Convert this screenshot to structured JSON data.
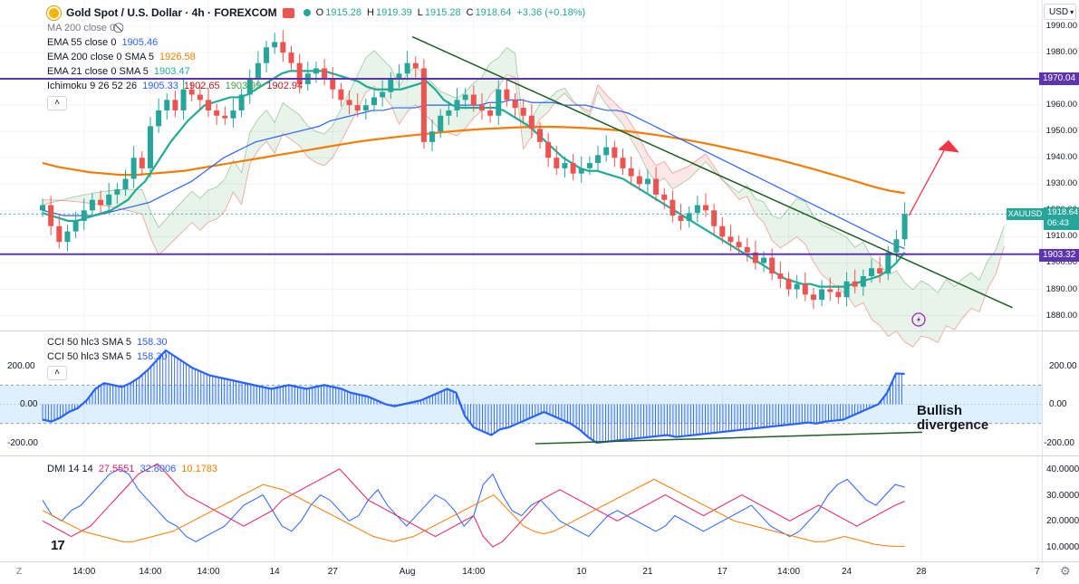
{
  "header": {
    "symbol_title": "Gold Spot / U.S. Dollar · 4h · FOREXCOM",
    "ohlc": [
      {
        "k": "O",
        "v": "1915.28"
      },
      {
        "k": "H",
        "v": "1919.39"
      },
      {
        "k": "L",
        "v": "1915.28"
      },
      {
        "k": "C",
        "v": "1918.64"
      }
    ],
    "change": "+3.36 (+0.18%)",
    "currency": "USD"
  },
  "legend": [
    {
      "label": "MA 200 close 0",
      "value": "",
      "color": "#787b86"
    },
    {
      "label": "EMA 55 close 0",
      "value": "1905.46",
      "color": "#2962ff"
    },
    {
      "label": "EMA 200 close 0 SMA 5",
      "value": "1926.58",
      "color": "#f57c00"
    },
    {
      "label": "EMA 21 close 0 SMA 5",
      "value": "1903.47",
      "color": "#22ab94"
    },
    {
      "label": "Ichimoku 9 26 52 26",
      "values": [
        "1905.33",
        "1902.65",
        "1903.99",
        "1902.94"
      ],
      "colors": [
        "#2962ff",
        "#b71c1c",
        "#43a047",
        "#b71c1c"
      ]
    }
  ],
  "price_axis": {
    "ticks": [
      "1990.00",
      "1980.00",
      "1970.00",
      "1960.00",
      "1950.00",
      "1940.00",
      "1930.00",
      "1920.00",
      "1910.00",
      "1900.00",
      "1890.00",
      "1880.00"
    ],
    "tags": [
      {
        "text": "1970.04",
        "color": "#5e35b1"
      },
      {
        "text": "XAUUSD",
        "color": "#26a69a"
      },
      {
        "text": "1918.64",
        "color": "#26a69a"
      },
      {
        "text": "06:43",
        "color": "#26a69a"
      },
      {
        "text": "1903.32",
        "color": "#5e35b1"
      }
    ]
  },
  "cci_panel": {
    "legend": [
      {
        "label": "CCI 50 hlc3 SMA 5",
        "value": "158.30"
      },
      {
        "label": "CCI 50 hlc3 SMA 5",
        "value": "158.30"
      }
    ],
    "ticks": [
      "200.00",
      "0.00",
      "-200.00"
    ],
    "annotation_line1": "Bullish",
    "annotation_line2": "divergence"
  },
  "dmi_panel": {
    "label": "DMI 14 14",
    "values": [
      {
        "v": "27.5551",
        "color": "#e91e63"
      },
      {
        "v": "32.8006",
        "color": "#2962ff"
      },
      {
        "v": "10.1783",
        "color": "#f57c00"
      }
    ],
    "ticks": [
      "40.0000",
      "30.0000",
      "20.0000",
      "10.0000"
    ]
  },
  "time_axis": [
    "10",
    "14:00",
    "17",
    "14:00",
    "24",
    "27",
    "Aug",
    "7",
    "14:00",
    "14",
    "14:00",
    "21",
    "14:00",
    "28"
  ],
  "corner_left": "Z",
  "corner_right": "⚙",
  "logo": "17",
  "chart_data": [
    {
      "type": "candlestick",
      "title": "Gold Spot / U.S. Dollar · 4h · FOREXCOM",
      "ylim": [
        1875,
        1995
      ],
      "x_label_positions": {
        "10": 5,
        "14:00a": 13,
        "17": 20,
        "14:00b": 28,
        "24": 35,
        "27": 44,
        "Aug": 52,
        "7": 65,
        "14:00c": 73,
        "14": 82,
        "14:00d": 90,
        "21": 97,
        "14:00e": 106,
        "28": 120
      },
      "close": [
        1922,
        1914,
        1908,
        1912,
        1916,
        1920,
        1924,
        1922,
        1926,
        1928,
        1932,
        1940,
        1936,
        1952,
        1958,
        1962,
        1958,
        1966,
        1964,
        1962,
        1958,
        1956,
        1955,
        1958,
        1964,
        1970,
        1976,
        1982,
        1984,
        1980,
        1976,
        1968,
        1972,
        1974,
        1970,
        1966,
        1962,
        1960,
        1958,
        1960,
        1963,
        1965,
        1970,
        1972,
        1976,
        1974,
        1946,
        1950,
        1956,
        1958,
        1962,
        1964,
        1960,
        1958,
        1956,
        1966,
        1962,
        1959,
        1956,
        1951,
        1946,
        1940,
        1936,
        1938,
        1934,
        1936,
        1938,
        1941,
        1944,
        1940,
        1936,
        1933,
        1930,
        1932,
        1926,
        1924,
        1918,
        1916,
        1919,
        1922,
        1920,
        1914,
        1910,
        1908,
        1906,
        1904,
        1900,
        1902,
        1896,
        1894,
        1890,
        1892,
        1888,
        1886,
        1890,
        1889,
        1887,
        1893,
        1891,
        1895,
        1898,
        1896,
        1904,
        1909,
        1918.64
      ],
      "ema21": [
        1919,
        1918,
        1917,
        1916,
        1916,
        1917,
        1918,
        1919,
        1920,
        1922,
        1924,
        1928,
        1931,
        1936,
        1941,
        1946,
        1950,
        1954,
        1957,
        1960,
        1961,
        1962,
        1963,
        1963,
        1964,
        1966,
        1968,
        1970,
        1972,
        1973,
        1973,
        1973,
        1973,
        1973,
        1972,
        1971,
        1970,
        1969,
        1967,
        1966,
        1966,
        1966,
        1966,
        1967,
        1968,
        1969,
        1966,
        1962,
        1960,
        1959,
        1959,
        1959,
        1959,
        1959,
        1958,
        1956,
        1954,
        1952,
        1949,
        1946,
        1943,
        1940,
        1938,
        1936,
        1935,
        1935,
        1934,
        1933,
        1932,
        1930,
        1928,
        1926,
        1924,
        1922,
        1920,
        1918,
        1916,
        1914,
        1912,
        1910,
        1908,
        1906,
        1904,
        1902,
        1900,
        1898,
        1896,
        1894,
        1893,
        1892,
        1892,
        1891,
        1891,
        1891,
        1891,
        1892,
        1893,
        1894,
        1895,
        1897,
        1900,
        1904
      ],
      "ema55": [
        1920,
        1919,
        1918,
        1918,
        1918,
        1918,
        1919,
        1920,
        1921,
        1922,
        1923,
        1925,
        1927,
        1929,
        1931,
        1934,
        1937,
        1940,
        1942,
        1944,
        1946,
        1947,
        1948,
        1949,
        1950,
        1951,
        1952,
        1954,
        1955,
        1956,
        1957,
        1958,
        1958,
        1959,
        1959,
        1959,
        1960,
        1960,
        1960,
        1960,
        1960,
        1960,
        1961,
        1961,
        1962,
        1962,
        1961,
        1961,
        1961,
        1960,
        1960,
        1960,
        1959,
        1958,
        1958,
        1957,
        1955,
        1953,
        1951,
        1949,
        1947,
        1945,
        1943,
        1941,
        1939,
        1937,
        1935,
        1933,
        1931,
        1929,
        1927,
        1925,
        1923,
        1921,
        1919,
        1917,
        1915,
        1913,
        1911,
        1909,
        1907,
        1905.46
      ],
      "ema200": [
        1938,
        1936.5,
        1935.5,
        1934.5,
        1934,
        1933.5,
        1933.5,
        1934,
        1934.5,
        1935,
        1936,
        1937,
        1938,
        1939,
        1940,
        1941,
        1942,
        1943,
        1944,
        1945,
        1946,
        1946.8,
        1947.5,
        1948.2,
        1948.8,
        1949.4,
        1950,
        1950.5,
        1950.9,
        1951.2,
        1951.5,
        1951.7,
        1951.8,
        1951.7,
        1951.5,
        1951.2,
        1950.8,
        1950.3,
        1949.6,
        1948.8,
        1947.9,
        1946.9,
        1945.8,
        1944.6,
        1943.3,
        1942,
        1940.6,
        1939.2,
        1937.6,
        1936,
        1934.3,
        1932.6,
        1930.8,
        1929,
        1927.5,
        1926.58
      ],
      "cci": [
        -80,
        -90,
        -70,
        -40,
        -20,
        20,
        80,
        110,
        100,
        90,
        110,
        140,
        180,
        230,
        280,
        250,
        220,
        190,
        170,
        150,
        140,
        130,
        120,
        110,
        100,
        90,
        80,
        90,
        100,
        90,
        80,
        90,
        100,
        90,
        80,
        60,
        50,
        40,
        20,
        0,
        -10,
        0,
        10,
        20,
        40,
        60,
        80,
        60,
        -60,
        -120,
        -140,
        -160,
        -130,
        -120,
        -100,
        -80,
        -60,
        -40,
        -60,
        -80,
        -100,
        -130,
        -170,
        -200,
        -195,
        -190,
        -185,
        -180,
        -175,
        -170,
        -165,
        -160,
        -170,
        -165,
        -160,
        -155,
        -150,
        -145,
        -140,
        -135,
        -130,
        -125,
        -120,
        -115,
        -110,
        -105,
        -100,
        -95,
        -100,
        -90,
        -85,
        -80,
        -60,
        -40,
        -20,
        0,
        60,
        160,
        158.3
      ],
      "dmi_plus": [
        28,
        22,
        20,
        24,
        26,
        30,
        34,
        38,
        40,
        38,
        32,
        28,
        24,
        20,
        18,
        14,
        12,
        14,
        16,
        18,
        22,
        26,
        28,
        30,
        24,
        18,
        16,
        20,
        26,
        30,
        28,
        24,
        20,
        22,
        28,
        32,
        26,
        22,
        18,
        22,
        26,
        30,
        28,
        24,
        18,
        22,
        34,
        38,
        30,
        24,
        22,
        26,
        28,
        24,
        20,
        18,
        16,
        14,
        18,
        22,
        24,
        22,
        20,
        18,
        16,
        18,
        22,
        20,
        18,
        16,
        18,
        20,
        22,
        24,
        26,
        22,
        18,
        16,
        14,
        16,
        20,
        24,
        30,
        34,
        36,
        32,
        28,
        26,
        30,
        34,
        33
      ],
      "dmi_minus": [
        20,
        18,
        16,
        14,
        16,
        18,
        22,
        26,
        30,
        34,
        38,
        40,
        42,
        38,
        34,
        30,
        28,
        26,
        24,
        22,
        20,
        18,
        20,
        22,
        24,
        28,
        30,
        32,
        34,
        36,
        38,
        40,
        36,
        32,
        28,
        26,
        24,
        22,
        20,
        18,
        16,
        14,
        16,
        18,
        20,
        22,
        14,
        10,
        12,
        16,
        20,
        24,
        28,
        30,
        32,
        30,
        28,
        26,
        24,
        22,
        20,
        22,
        24,
        26,
        28,
        30,
        28,
        26,
        24,
        22,
        24,
        26,
        28,
        30,
        28,
        26,
        24,
        22,
        20,
        22,
        24,
        26,
        24,
        22,
        20,
        18,
        20,
        22,
        24,
        26,
        27.5551
      ],
      "adx": [
        24,
        22,
        20,
        18,
        16,
        15,
        14,
        13,
        12,
        12,
        13,
        14,
        15,
        16,
        18,
        20,
        22,
        24,
        26,
        28,
        30,
        32,
        34,
        33,
        32,
        30,
        28,
        26,
        24,
        22,
        20,
        18,
        16,
        14,
        13,
        12,
        13,
        14,
        16,
        18,
        20,
        22,
        24,
        26,
        28,
        30,
        26,
        22,
        18,
        16,
        15,
        16,
        18,
        20,
        22,
        24,
        26,
        28,
        30,
        32,
        34,
        36,
        34,
        32,
        30,
        28,
        26,
        24,
        22,
        20,
        19,
        18,
        17,
        16,
        15,
        14,
        13,
        12,
        12,
        13,
        14,
        13,
        12,
        11,
        10.5,
        10.2,
        10.1783
      ]
    }
  ]
}
